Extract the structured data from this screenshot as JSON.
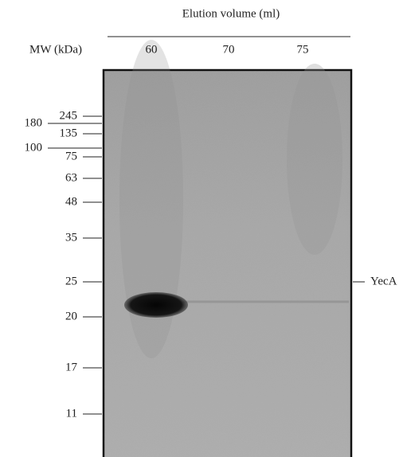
{
  "header": {
    "title": "Elution volume (ml)",
    "mw_label": "MW (kDa)",
    "lanes": [
      "60",
      "70",
      "75"
    ]
  },
  "markers": [
    "245",
    "180",
    "135",
    "100",
    "75",
    "63",
    "48",
    "35",
    "25",
    "20",
    "17",
    "11"
  ],
  "band_label": "YecA"
}
